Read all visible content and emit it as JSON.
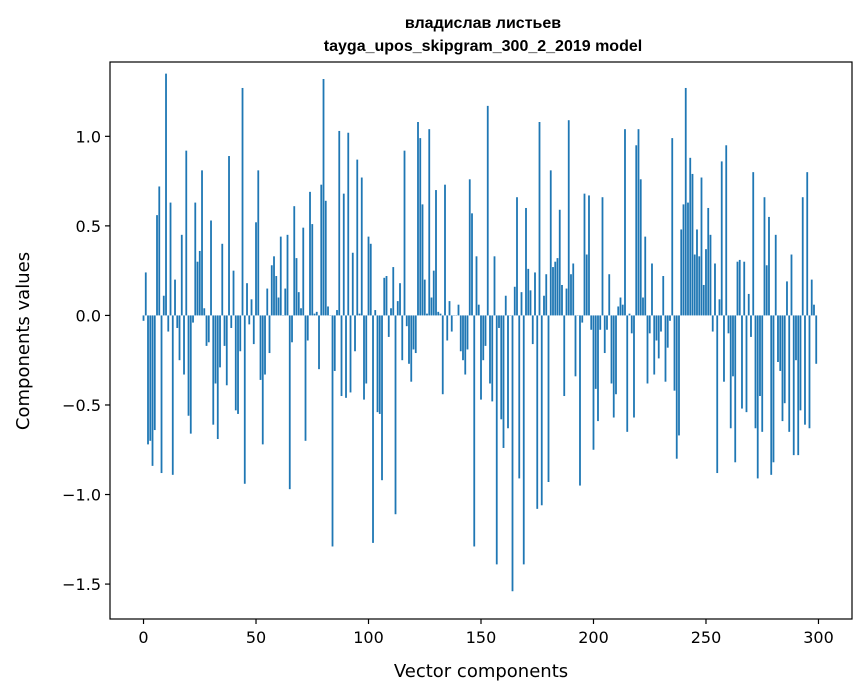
{
  "chart_data": {
    "type": "bar",
    "title_line1": "владислав листьев",
    "title_line2": "tayga_upos_skipgram_300_2_2019 model",
    "xlabel": "Vector components",
    "ylabel": "Components values",
    "xlim": [
      -14.9,
      314.9
    ],
    "ylim": [
      -1.695,
      1.415
    ],
    "xticks": [
      0,
      50,
      100,
      150,
      200,
      250,
      300
    ],
    "yticks": [
      -1.5,
      -1.0,
      -0.5,
      0.0,
      0.5,
      1.0
    ],
    "ytick_labels": [
      "−1.5",
      "−1.0",
      "−0.5",
      "0.0",
      "0.5",
      "1.0"
    ],
    "bar_color": "#1f77b4",
    "grid": false,
    "values": [
      -0.03,
      0.24,
      -0.72,
      -0.7,
      -0.84,
      -0.64,
      0.56,
      0.72,
      -0.88,
      0.11,
      1.35,
      -0.09,
      0.63,
      -0.89,
      0.2,
      -0.07,
      -0.25,
      0.45,
      -0.33,
      0.92,
      -0.56,
      -0.66,
      -0.04,
      0.63,
      0.3,
      0.36,
      0.81,
      0.04,
      -0.17,
      -0.15,
      0.53,
      -0.61,
      -0.38,
      -0.69,
      -0.29,
      0.4,
      -0.17,
      -0.39,
      0.89,
      -0.07,
      0.25,
      -0.53,
      -0.55,
      -0.2,
      1.27,
      -0.94,
      0.18,
      -0.05,
      0.09,
      -0.16,
      0.52,
      0.81,
      -0.36,
      -0.72,
      -0.33,
      0.15,
      -0.21,
      0.28,
      0.33,
      0.22,
      0.1,
      0.44,
      0.0,
      0.15,
      0.45,
      -0.97,
      -0.15,
      0.61,
      0.32,
      0.13,
      0.04,
      0.49,
      -0.7,
      -0.14,
      0.69,
      0.51,
      0.01,
      0.02,
      -0.3,
      0.73,
      1.32,
      0.64,
      0.05,
      0.0,
      -1.29,
      -0.31,
      0.03,
      1.03,
      -0.45,
      0.68,
      -0.46,
      1.02,
      -0.43,
      0.35,
      -0.2,
      0.87,
      0.01,
      0.77,
      -0.47,
      -0.38,
      0.44,
      0.4,
      -1.27,
      0.03,
      -0.54,
      -0.55,
      -0.92,
      0.21,
      0.22,
      -0.12,
      0.04,
      0.27,
      -1.11,
      0.08,
      0.18,
      -0.25,
      0.92,
      -0.06,
      -0.27,
      -0.37,
      -0.19,
      -0.21,
      1.08,
      0.99,
      0.62,
      0.2,
      0.01,
      1.04,
      0.1,
      0.25,
      0.7,
      0.02,
      0.01,
      -0.44,
      0.73,
      -0.14,
      0.08,
      -0.09,
      0.0,
      0.0,
      0.06,
      -0.2,
      -0.25,
      -0.33,
      -0.19,
      0.76,
      0.57,
      -1.29,
      0.33,
      0.06,
      -0.47,
      -0.25,
      -0.17,
      1.17,
      -0.38,
      -0.48,
      0.33,
      -1.39,
      -0.07,
      -0.58,
      -0.74,
      0.11,
      -0.63,
      0.0,
      -1.54,
      0.16,
      0.66,
      -0.91,
      0.13,
      -1.39,
      0.6,
      0.26,
      0.14,
      -0.16,
      0.24,
      -1.08,
      1.08,
      -1.06,
      0.11,
      0.23,
      -0.93,
      0.81,
      0.27,
      0.3,
      0.32,
      0.59,
      0.17,
      -0.45,
      0.15,
      1.09,
      0.23,
      0.29,
      -0.34,
      0.0,
      -0.95,
      -0.04,
      0.68,
      0.34,
      0.67,
      -0.08,
      -0.75,
      -0.41,
      -0.59,
      -0.08,
      0.66,
      -0.21,
      -0.08,
      0.23,
      -0.38,
      -0.57,
      -0.44,
      0.05,
      0.1,
      0.06,
      1.04,
      -0.65,
      0.01,
      -0.1,
      -0.57,
      0.95,
      1.04,
      0.76,
      0.1,
      0.44,
      -0.38,
      -0.1,
      0.29,
      -0.33,
      -0.14,
      -0.24,
      -0.09,
      0.22,
      -0.37,
      -0.18,
      -0.03,
      0.99,
      -0.42,
      -0.8,
      -0.67,
      0.48,
      0.62,
      1.27,
      0.63,
      0.88,
      0.79,
      0.34,
      0.48,
      0.33,
      0.77,
      0.17,
      0.37,
      0.6,
      0.45,
      -0.09,
      0.29,
      -0.88,
      0.09,
      0.86,
      -0.37,
      0.95,
      -0.1,
      -0.63,
      -0.34,
      -0.82,
      0.3,
      0.31,
      -0.52,
      0.3,
      -0.54,
      0.12,
      -0.12,
      0.8,
      -0.63,
      -0.91,
      -0.45,
      -0.65,
      0.66,
      0.28,
      0.55,
      -0.89,
      -0.82,
      0.45,
      -0.26,
      -0.31,
      -0.59,
      -0.49,
      0.19,
      -0.65,
      0.34,
      -0.78,
      -0.25,
      -0.78,
      -0.53,
      0.66,
      -0.61,
      0.8,
      -0.63,
      0.2,
      0.06,
      -0.27
    ]
  }
}
